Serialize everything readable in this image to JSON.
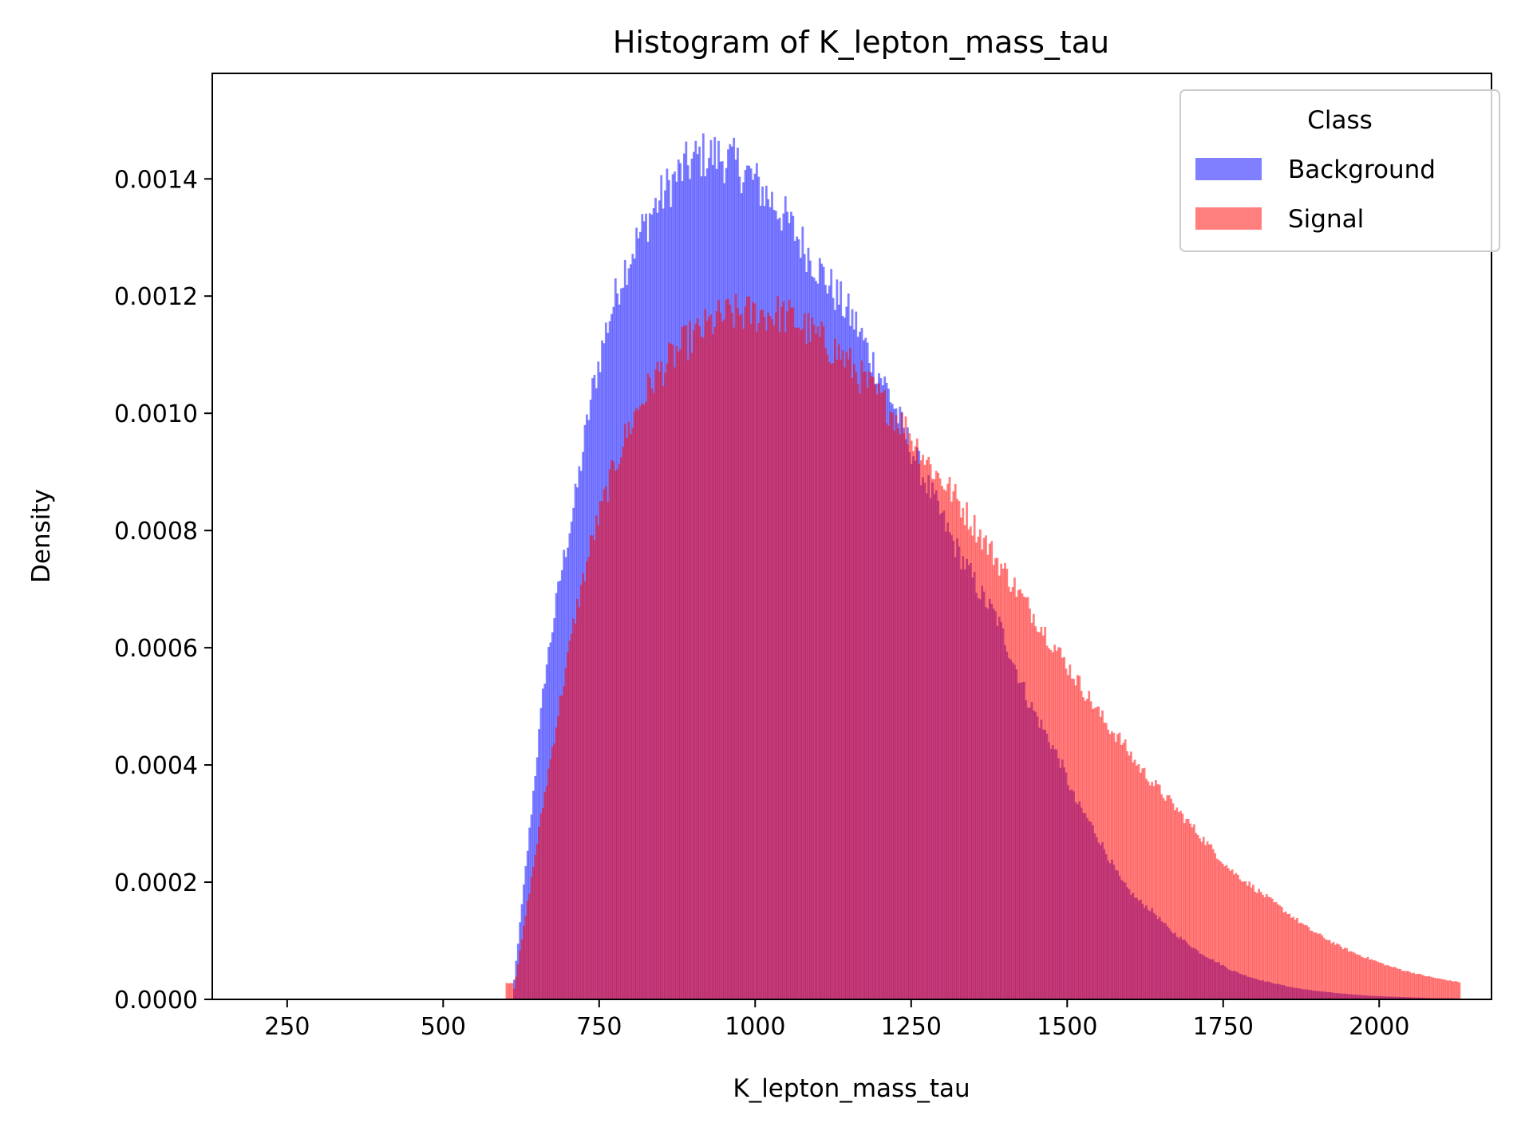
{
  "chart_data": {
    "type": "histogram",
    "title": "Histogram of K_lepton_mass_tau",
    "xlabel": "K_lepton_mass_tau",
    "ylabel": "Density",
    "xlim": [
      130,
      2180
    ],
    "ylim": [
      0,
      0.00158
    ],
    "xticks": [
      250,
      500,
      750,
      1000,
      1250,
      1500,
      1750,
      2000
    ],
    "xtick_labels": [
      "250",
      "500",
      "750",
      "1000",
      "1250",
      "1500",
      "1750",
      "2000"
    ],
    "yticks": [
      0,
      0.0002,
      0.0004,
      0.0006,
      0.0008,
      0.001,
      0.0012,
      0.0014
    ],
    "ytick_labels": [
      "0.0000",
      "0.0002",
      "0.0004",
      "0.0006",
      "0.0008",
      "0.0010",
      "0.0012",
      "0.0014"
    ],
    "bin_range": [
      600,
      2130
    ],
    "grid": false,
    "legend": {
      "title": "Class",
      "position": "upper right"
    },
    "series": [
      {
        "name": "Background",
        "color": "#0000ff",
        "alpha": 0.5,
        "x": [
          600,
          625,
          650,
          675,
          700,
          725,
          750,
          775,
          800,
          825,
          850,
          875,
          900,
          925,
          950,
          975,
          1000,
          1025,
          1050,
          1075,
          1100,
          1125,
          1150,
          1175,
          1200,
          1225,
          1250,
          1275,
          1300,
          1325,
          1350,
          1375,
          1400,
          1425,
          1450,
          1475,
          1500,
          1525,
          1550,
          1575,
          1600,
          1625,
          1650,
          1675,
          1700,
          1725,
          1750,
          1775,
          1800,
          1825,
          1850,
          1875,
          1900,
          1925,
          1950,
          1975,
          2000,
          2025,
          2050,
          2075,
          2100,
          2125
        ],
        "density": [
          2e-05,
          0.00028,
          0.00055,
          0.00072,
          0.00086,
          0.00103,
          0.00115,
          0.00124,
          0.0013,
          0.00135,
          0.00139,
          0.00142,
          0.00144,
          0.00144,
          0.00143,
          0.00141,
          0.00138,
          0.00135,
          0.00131,
          0.00127,
          0.00123,
          0.00119,
          0.00115,
          0.00109,
          0.00104,
          0.00097,
          0.00091,
          0.00085,
          0.00079,
          0.00074,
          0.00069,
          0.00065,
          0.00058,
          0.00051,
          0.00046,
          0.00041,
          0.00034,
          0.0003,
          0.00025,
          0.0002,
          0.00017,
          0.00015,
          0.00012,
          0.0001,
          8e-05,
          6.5e-05,
          5e-05,
          4e-05,
          3.2e-05,
          2.6e-05,
          2e-05,
          1.6e-05,
          1.3e-05,
          1e-05,
          8e-06,
          6e-06,
          5e-06,
          4e-06,
          3e-06,
          2e-06,
          2e-06,
          1e-06
        ]
      },
      {
        "name": "Signal",
        "color": "#ff0000",
        "alpha": 0.5,
        "x": [
          600,
          625,
          650,
          675,
          700,
          725,
          750,
          775,
          800,
          825,
          850,
          875,
          900,
          925,
          950,
          975,
          1000,
          1025,
          1050,
          1075,
          1100,
          1125,
          1150,
          1175,
          1200,
          1225,
          1250,
          1275,
          1300,
          1325,
          1350,
          1375,
          1400,
          1425,
          1450,
          1475,
          1500,
          1525,
          1550,
          1575,
          1600,
          1625,
          1650,
          1675,
          1700,
          1725,
          1750,
          1775,
          1800,
          1825,
          1850,
          1875,
          1900,
          1925,
          1950,
          1975,
          2000,
          2025,
          2050,
          2075,
          2100,
          2125
        ],
        "density": [
          1e-05,
          0.00018,
          0.00035,
          0.00051,
          0.00066,
          0.00078,
          0.00087,
          0.00095,
          0.00101,
          0.00106,
          0.00109,
          0.00112,
          0.00114,
          0.00116,
          0.00117,
          0.00117,
          0.00117,
          0.00117,
          0.00116,
          0.00114,
          0.00112,
          0.0011,
          0.00107,
          0.00104,
          0.00101,
          0.00098,
          0.00094,
          0.0009,
          0.00087,
          0.00083,
          0.00079,
          0.00075,
          0.00071,
          0.00067,
          0.00063,
          0.00059,
          0.00055,
          0.00051,
          0.00047,
          0.00044,
          0.0004,
          0.00037,
          0.00034,
          0.00031,
          0.00028,
          0.00025,
          0.00022,
          0.0002,
          0.00018,
          0.00016,
          0.00014,
          0.00012,
          0.000105,
          9e-05,
          7.8e-05,
          6.8e-05,
          5.8e-05,
          5e-05,
          4.3e-05,
          3.7e-05,
          3.2e-05,
          2.8e-05
        ]
      }
    ]
  }
}
